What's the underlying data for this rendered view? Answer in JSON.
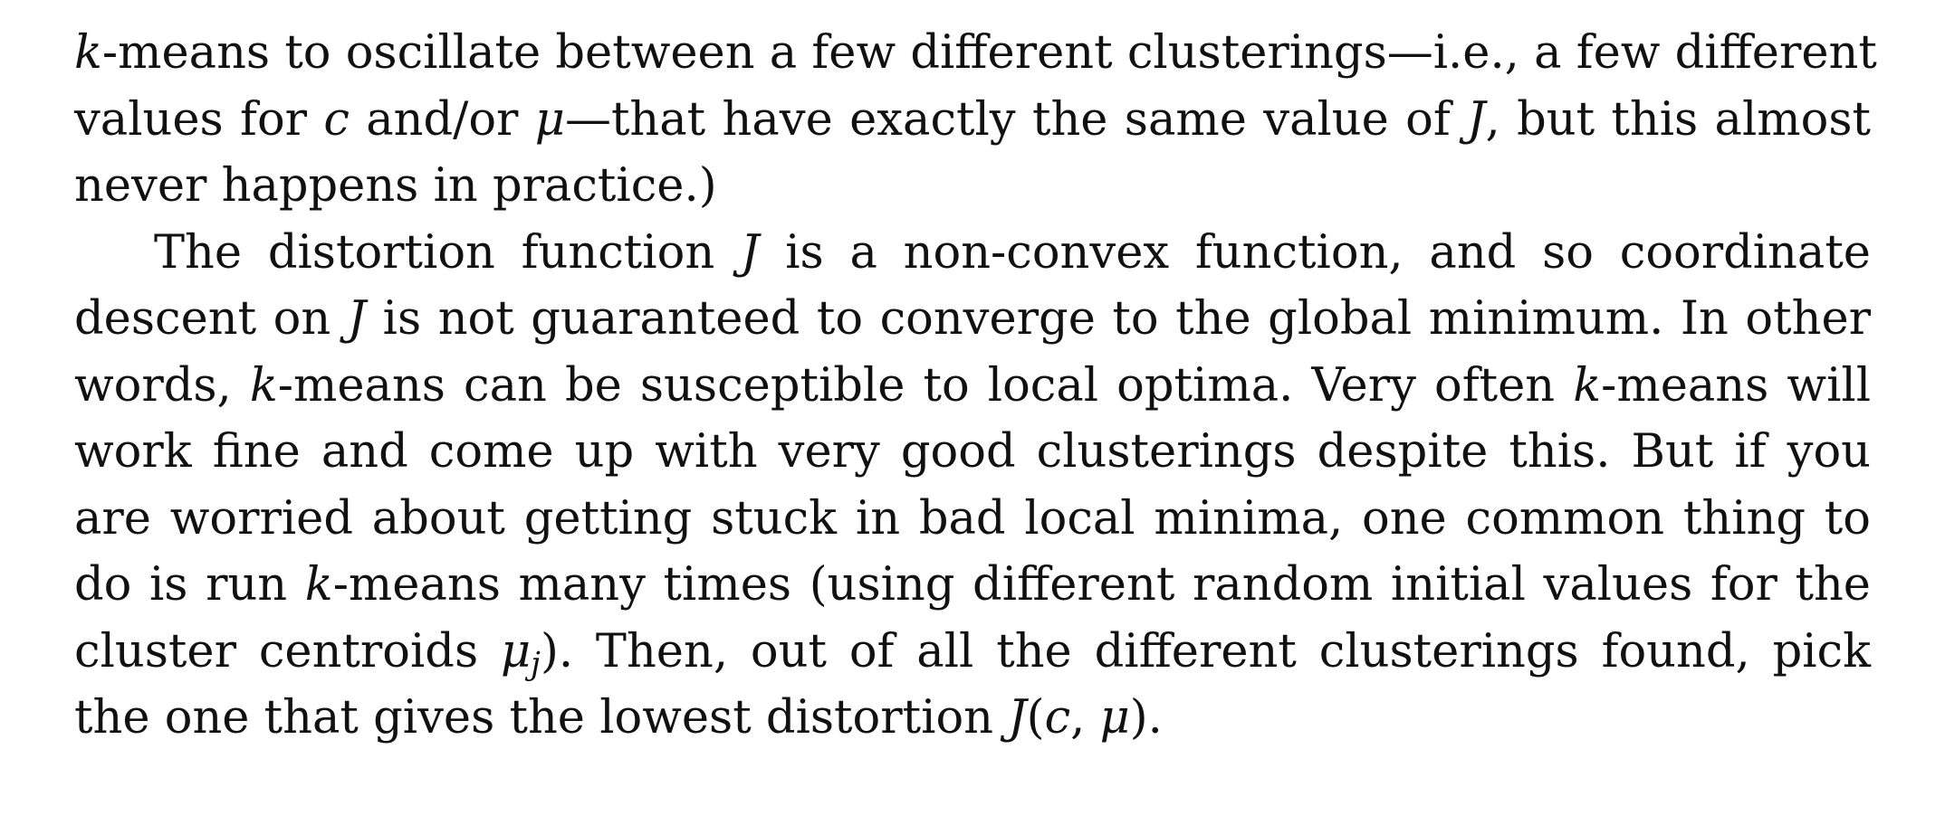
{
  "paragraph1": {
    "l1_var": "k",
    "l1_text": "-means to oscillate between a few different clusterings—i.e., a few different",
    "l2_a": "values for ",
    "l2_c": "c",
    "l2_b": " and/or ",
    "l2_mu": "μ",
    "l2_d": "—that have exactly the same value of ",
    "l2_J": "J",
    "l2_e": ", but this almost",
    "l3_text": "never happens in practice.)"
  },
  "paragraph2": {
    "l1_a": "The distortion function ",
    "l1_J": "J",
    "l1_b": " is a non-convex function, and so coordinate",
    "l2_a": "descent on ",
    "l2_J": "J",
    "l2_b": " is not guaranteed to converge to the global minimum. In other",
    "l3_a": "words, ",
    "l3_k1": "k",
    "l3_b": "-means can be susceptible to local optima. Very often ",
    "l3_k2": "k",
    "l3_c": "-means will",
    "l4_text": "work fine and come up with very good clusterings despite this. But if you",
    "l5_text": "are worried about getting stuck in bad local minima, one common thing to",
    "l6_a": "do is run ",
    "l6_k": "k",
    "l6_b": "-means many times (using different random initial values for the",
    "l7_a": "cluster centroids ",
    "l7_mu": "μ",
    "l7_sub": "j",
    "l7_b": "). Then, out of all the different clusterings found, pick",
    "l8_a": "the one that gives the lowest distortion ",
    "l8_J": "J",
    "l8_open": "(",
    "l8_c": "c",
    "l8_comma": ", ",
    "l8_mu": "μ",
    "l8_close": ").",
    "l8_end": ""
  }
}
